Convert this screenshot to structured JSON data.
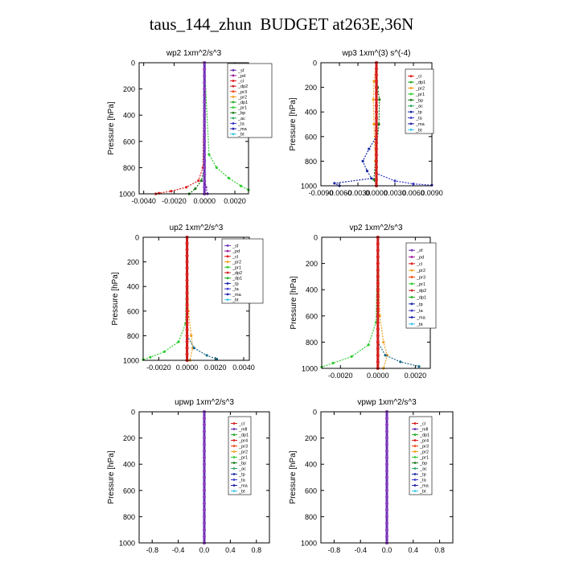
{
  "page_title": "taus_144_zhun  BUDGET at263E,36N",
  "chart_data": [
    {
      "type": "line",
      "title": "wp2  1xm^2/s^3",
      "ylabel": "Pressure [hPa]",
      "yticks": [
        "0",
        "200",
        "400",
        "600",
        "800",
        "1000"
      ],
      "xticks": [
        "-0.0040",
        "-0.0020",
        "0.0000",
        "0.0020"
      ],
      "xlim": [
        -0.0043,
        0.0029
      ],
      "ylim": [
        1000,
        0
      ],
      "grid": false,
      "legend": {
        "placement": "top-right",
        "entries": [
          "_sf",
          "_pd",
          "_cl",
          "_dp2",
          "_pr3",
          "_pr2",
          "_dp1",
          "_pr1",
          "_bp",
          "_ac",
          "_ta",
          "_ma",
          "_bt"
        ]
      },
      "series": [
        {
          "name": "_pd",
          "color": "#6b2fb3",
          "points": [
            [
              0.0,
              0
            ],
            [
              0.0,
              850
            ],
            [
              0.0001,
              950
            ],
            [
              0.0002,
              1000
            ]
          ]
        },
        {
          "name": "_cl",
          "color": "#dd1c1c",
          "points": [
            [
              0.0,
              0
            ],
            [
              -0.0001,
              800
            ],
            [
              -0.0004,
              900
            ],
            [
              -0.0012,
              950
            ],
            [
              -0.0022,
              980
            ],
            [
              -0.003,
              995
            ],
            [
              -0.0032,
              1000
            ]
          ]
        },
        {
          "name": "_pr1",
          "color": "#33cc33",
          "points": [
            [
              0.0,
              0
            ],
            [
              0.0003,
              700
            ],
            [
              0.0008,
              800
            ],
            [
              0.0016,
              880
            ],
            [
              0.0024,
              940
            ],
            [
              0.0029,
              970
            ]
          ]
        },
        {
          "name": "_dp1",
          "color": "#1e7a1e",
          "points": [
            [
              0.0,
              0
            ],
            [
              0.0,
              800
            ],
            [
              -0.0002,
              900
            ],
            [
              -0.0006,
              960
            ],
            [
              -0.001,
              1000
            ]
          ]
        },
        {
          "name": "_bt",
          "color": "#3aa8e8",
          "points": [
            [
              0.0,
              0
            ],
            [
              0.0,
              1000
            ]
          ]
        }
      ]
    },
    {
      "type": "line",
      "title": "wp3  1xm^(3) s^(-4)",
      "ylabel": "Pressure [hPa]",
      "yticks": [
        "0",
        "200",
        "400",
        "600",
        "800",
        "1000"
      ],
      "xticks": [
        "-0.0090",
        "-0.0060",
        "-0.0030",
        "0.0000",
        "0.0030",
        "0.0060",
        "0.0090"
      ],
      "xlim": [
        -0.009,
        0.009
      ],
      "ylim": [
        1000,
        0
      ],
      "grid": false,
      "legend": {
        "placement": "top-right",
        "entries": [
          "_cl",
          "_dp1",
          "_pr2",
          "_pr1",
          "_bp",
          "_ac",
          "_tp",
          "_ta",
          "_ma",
          "_bt"
        ]
      },
      "series": [
        {
          "name": "_pr2",
          "color": "#f0a020",
          "points": [
            [
              0.0,
              0
            ],
            [
              -0.0004,
              150
            ],
            [
              -0.0005,
              300
            ],
            [
              -0.0004,
              500
            ],
            [
              -0.0002,
              800
            ],
            [
              0.0,
              1000
            ]
          ]
        },
        {
          "name": "_bp",
          "color": "#1e7a1e",
          "points": [
            [
              0.0,
              0
            ],
            [
              0.0002,
              200
            ],
            [
              0.0005,
              300
            ],
            [
              0.0004,
              500
            ],
            [
              0.0,
              700
            ],
            [
              -0.0004,
              950
            ],
            [
              0.0,
              1000
            ]
          ]
        },
        {
          "name": "_tp",
          "color": "#1a2aa8",
          "points": [
            [
              0.0,
              0
            ],
            [
              0.0,
              600
            ],
            [
              -0.0012,
              700
            ],
            [
              -0.0022,
              800
            ],
            [
              -0.0015,
              880
            ],
            [
              -0.0008,
              940
            ],
            [
              -0.0068,
              980
            ],
            [
              -0.006,
              1000
            ]
          ]
        },
        {
          "name": "_ta",
          "color": "#3a3acc",
          "points": [
            [
              0.0,
              0
            ],
            [
              0.0,
              900
            ],
            [
              0.003,
              960
            ],
            [
              0.006,
              985
            ],
            [
              0.009,
              995
            ]
          ]
        },
        {
          "name": "_cl",
          "color": "#dd1c1c",
          "points": [
            [
              0.0,
              0
            ],
            [
              0.0,
              1000
            ]
          ]
        }
      ]
    },
    {
      "type": "line",
      "title": "up2  1xm^2/s^3",
      "ylabel": "Pressure [hPa]",
      "yticks": [
        "0",
        "200",
        "400",
        "600",
        "800",
        "1000"
      ],
      "xticks": [
        "-0.0020",
        "0.0000",
        "0.0020",
        "0.0040"
      ],
      "xlim": [
        -0.0031,
        0.0044
      ],
      "ylim": [
        1000,
        0
      ],
      "grid": false,
      "legend": {
        "placement": "top-right",
        "entries": [
          "_sf",
          "_pd",
          "_cl",
          "_pr2",
          "_pr1",
          "_dp2",
          "_dp1",
          "_tp",
          "_ta",
          "_ma",
          "_bt"
        ]
      },
      "series": [
        {
          "name": "_pr1",
          "color": "#33cc33",
          "points": [
            [
              0.0,
              0
            ],
            [
              -0.0001,
              700
            ],
            [
              -0.0006,
              850
            ],
            [
              -0.0016,
              930
            ],
            [
              -0.0026,
              975
            ],
            [
              -0.0031,
              995
            ]
          ]
        },
        {
          "name": "_pr2",
          "color": "#f0a020",
          "points": [
            [
              0.0,
              0
            ],
            [
              0.0001,
              600
            ],
            [
              0.0003,
              800
            ],
            [
              0.0004,
              900
            ],
            [
              0.0002,
              1000
            ]
          ]
        },
        {
          "name": "_tp",
          "color": "#1a6a88",
          "points": [
            [
              0.0,
              0
            ],
            [
              0.0,
              800
            ],
            [
              0.0005,
              900
            ],
            [
              0.0014,
              960
            ],
            [
              0.0021,
              990
            ]
          ]
        },
        {
          "name": "_cl",
          "color": "#dd1c1c",
          "points": [
            [
              0.0,
              0
            ],
            [
              0.0,
              1000
            ]
          ]
        }
      ]
    },
    {
      "type": "line",
      "title": "vp2  1xm^2/s^3",
      "ylabel": "Pressure [hPa]",
      "yticks": [
        "0",
        "200",
        "400",
        "600",
        "800",
        "1000"
      ],
      "xticks": [
        "-0.0020",
        "0.0000",
        "0.0020"
      ],
      "xlim": [
        -0.003,
        0.0028
      ],
      "ylim": [
        1000,
        0
      ],
      "grid": false,
      "legend": {
        "placement": "top-right",
        "entries": [
          "_sf",
          "_pd",
          "_cl",
          "_pr2",
          "_pr3",
          "_pr1",
          "_dp2",
          "_dp1",
          "_tp",
          "_ta",
          "_ma",
          "_bt"
        ]
      },
      "series": [
        {
          "name": "_pr1",
          "color": "#33cc33",
          "points": [
            [
              0.0,
              0
            ],
            [
              -0.0001,
              650
            ],
            [
              -0.0005,
              820
            ],
            [
              -0.0014,
              910
            ],
            [
              -0.0024,
              960
            ],
            [
              -0.003,
              990
            ]
          ]
        },
        {
          "name": "_pr2",
          "color": "#f0a020",
          "points": [
            [
              0.0,
              0
            ],
            [
              0.0001,
              600
            ],
            [
              0.0003,
              800
            ],
            [
              0.0005,
              900
            ],
            [
              0.0003,
              1000
            ]
          ]
        },
        {
          "name": "_tp",
          "color": "#1a6a88",
          "points": [
            [
              0.0,
              0
            ],
            [
              0.0,
              800
            ],
            [
              0.0004,
              900
            ],
            [
              0.0012,
              950
            ],
            [
              0.0022,
              985
            ]
          ]
        },
        {
          "name": "_cl",
          "color": "#dd1c1c",
          "points": [
            [
              0.0,
              0
            ],
            [
              0.0,
              1000
            ]
          ]
        }
      ]
    },
    {
      "type": "line",
      "title": "upwp  1xm^2/s^3",
      "ylabel": "Pressure [hPa]",
      "yticks": [
        "0",
        "200",
        "400",
        "600",
        "800",
        "1000"
      ],
      "xticks": [
        "-0.8",
        "-0.4",
        "0.0",
        "0.4",
        "0.8"
      ],
      "xlim": [
        -1.0,
        1.0
      ],
      "ylim": [
        1000,
        0
      ],
      "grid": false,
      "legend": {
        "placement": "top-right",
        "entries": [
          "_cl",
          "_mfl",
          "_dp1",
          "_pr4",
          "_pr3",
          "_pr2",
          "_pr1",
          "_bp",
          "_ac",
          "_tp",
          "_ta",
          "_ma",
          "_bt"
        ]
      },
      "series": [
        {
          "name": "_cl",
          "color": "#6b2fb3",
          "points": [
            [
              0.0,
              0
            ],
            [
              0.0,
              1000
            ]
          ]
        }
      ]
    },
    {
      "type": "line",
      "title": "vpwp  1xm^2/s^3",
      "ylabel": "Pressure [hPa]",
      "yticks": [
        "0",
        "200",
        "400",
        "600",
        "800",
        "1000"
      ],
      "xticks": [
        "-0.8",
        "-0.4",
        "0.0",
        "0.4",
        "0.8"
      ],
      "xlim": [
        -1.0,
        1.0
      ],
      "ylim": [
        1000,
        0
      ],
      "grid": false,
      "legend": {
        "placement": "top-right",
        "entries": [
          "_cl",
          "_mfl",
          "_dp1",
          "_pr4",
          "_pr3",
          "_pr2",
          "_pr1",
          "_bp",
          "_ac",
          "_tp",
          "_ta",
          "_ma",
          "_bt"
        ]
      },
      "series": [
        {
          "name": "_cl",
          "color": "#6b2fb3",
          "points": [
            [
              0.0,
              0
            ],
            [
              0.0,
              1000
            ]
          ]
        }
      ]
    }
  ],
  "legend_colors": {
    "_sf": "#6b2fb3",
    "_pd": "#9b1c9b",
    "_cl": "#dd1c1c",
    "_dp2": "#cc2222",
    "_pr3": "#ee4411",
    "_pr2": "#f0a020",
    "_dp1": "#22aa22",
    "_pr1": "#33cc33",
    "_bp": "#1e7a1e",
    "_ac": "#33aa66",
    "_tp": "#1a2aa8",
    "_ta": "#3a3acc",
    "_ma": "#2222aa",
    "_bt": "#3ac8e8",
    "_mfl": "#6b2fb3",
    "_pr4": "#dd2222"
  }
}
